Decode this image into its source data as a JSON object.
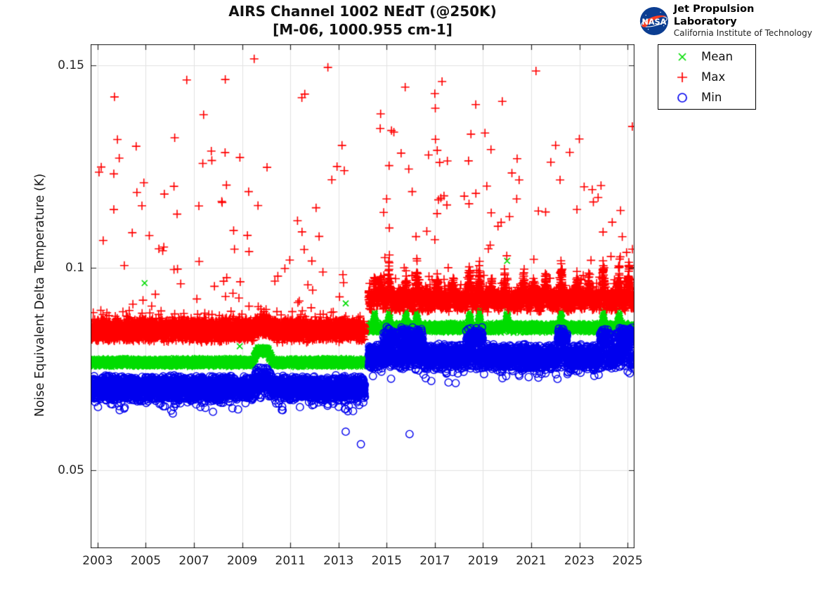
{
  "branding": {
    "nasa": "NASA",
    "org": "Jet Propulsion Laboratory",
    "sub": "California Institute of Technology"
  },
  "chart_data": {
    "type": "scatter",
    "title": "AIRS Channel 1002 NEdT (@250K)",
    "subtitle": "[M-06, 1000.955 cm-1]",
    "xlabel": "",
    "ylabel": "Noise Equivalent Delta Temperature (K)",
    "xlim": [
      2002.71,
      2025.29
    ],
    "ylim": [
      0.0307,
      0.1552
    ],
    "xticks": [
      2003,
      2005,
      2007,
      2009,
      2011,
      2013,
      2015,
      2017,
      2019,
      2021,
      2023,
      2025
    ],
    "yticks": [
      {
        "value": 0.05,
        "label": "0.05"
      },
      {
        "value": 0.1,
        "label": "0.1"
      },
      {
        "value": 0.15,
        "label": "0.15"
      }
    ],
    "grid": true,
    "legend_position": "outside-top-right",
    "legend": [
      {
        "label": "Mean",
        "marker": "x",
        "color": "#00DC00"
      },
      {
        "label": "Max",
        "marker": "+",
        "color": "#FF0000"
      },
      {
        "label": "Min",
        "marker": "o",
        "color": "#0000EE"
      }
    ],
    "event_gap": [
      2014.1,
      2014.25
    ],
    "sampling": {
      "start": 2002.74,
      "end": 2025.26,
      "per_year": 320,
      "seed": 987654321
    },
    "series": {
      "mean": {
        "name": "Mean",
        "color": "#00DC00",
        "base": {
          "pre": 0.0766,
          "post": 0.0852
        },
        "halfwidth": {
          "pre": 0.0012,
          "post": 0.0013
        },
        "pre_bump": {
          "start": 2009.45,
          "peak_start": 2009.62,
          "peak_end": 2010.05,
          "end": 2010.3,
          "amp": 0.0032
        },
        "spike_epochs": [
          2014.5,
          2015.1,
          2015.8,
          2016.25,
          2018.45,
          2018.85,
          2020.0,
          2022.25,
          2024.0,
          2024.65
        ],
        "spike_amp": 0.0042,
        "spike_halfwidth": 0.09,
        "outliers": [
          [
            2004.95,
            0.0962
          ],
          [
            2008.9,
            0.0806
          ],
          [
            2013.3,
            0.0912
          ],
          [
            2020.0,
            0.1017
          ]
        ]
      },
      "max": {
        "name": "Max",
        "color": "#FF0000",
        "base": {
          "pre": 0.0845,
          "post": 0.0918
        },
        "halfwidth": {
          "pre": 0.003,
          "post": 0.0028
        },
        "pre_bump": {
          "start": 2009.45,
          "peak_start": 2009.62,
          "peak_end": 2010.05,
          "end": 2010.3,
          "amp": 0.0012
        },
        "spike_epochs": [
          2014.5,
          2014.75,
          2015.1,
          2015.8,
          2016.25,
          2017.1,
          2017.75,
          2018.45,
          2018.85,
          2019.35,
          2019.9,
          2020.7,
          2021.1,
          2021.6,
          2022.25,
          2022.9,
          2023.4,
          2024.0,
          2024.65,
          2025.05
        ],
        "strong_epochs": [
          2015.1,
          2016.25,
          2018.45,
          2018.85,
          2022.25,
          2024.0,
          2024.65,
          2025.05
        ],
        "spike_amp": 0.006,
        "strong_amp": 0.0095,
        "spike_halfwidth": 0.1,
        "spray": {
          "prob_pre": 0.022,
          "prob_post": 0.02,
          "span_pre": [
            0.0885,
            0.132
          ],
          "span_post": [
            0.097,
            0.135
          ],
          "power": 2.2
        },
        "outliers": [
          [
            2003.06,
            0.1236
          ],
          [
            2003.7,
            0.1422
          ],
          [
            2004.6,
            0.13
          ],
          [
            2004.63,
            0.1186
          ],
          [
            2004.84,
            0.1153
          ],
          [
            2004.92,
            0.121
          ],
          [
            2005.77,
            0.1182
          ],
          [
            2006.17,
            0.1201
          ],
          [
            2006.2,
            0.1321
          ],
          [
            2006.7,
            0.1464
          ],
          [
            2007.4,
            0.1378
          ],
          [
            2007.72,
            0.1288
          ],
          [
            2008.17,
            0.1161
          ],
          [
            2008.3,
            0.1465
          ],
          [
            2009.27,
            0.1188
          ],
          [
            2009.5,
            0.1516
          ],
          [
            2011.48,
            0.142
          ],
          [
            2011.6,
            0.1429
          ],
          [
            2012.07,
            0.1148
          ],
          [
            2012.56,
            0.1495
          ],
          [
            2012.94,
            0.125
          ],
          [
            2013.24,
            0.124
          ],
          [
            2014.75,
            0.138
          ],
          [
            2015.0,
            0.117
          ],
          [
            2015.2,
            0.1339
          ],
          [
            2015.3,
            0.1335
          ],
          [
            2015.6,
            0.1283
          ],
          [
            2015.77,
            0.1446
          ],
          [
            2016.06,
            0.1188
          ],
          [
            2017.0,
            0.143
          ],
          [
            2017.02,
            0.1394
          ],
          [
            2017.1,
            0.129
          ],
          [
            2017.2,
            0.126
          ],
          [
            2017.25,
            0.1172
          ],
          [
            2017.3,
            0.146
          ],
          [
            2017.5,
            0.1155
          ],
          [
            2018.4,
            0.1264
          ],
          [
            2018.42,
            0.1158
          ],
          [
            2018.5,
            0.133
          ],
          [
            2018.7,
            0.1403
          ],
          [
            2019.8,
            0.1411
          ],
          [
            2020.2,
            0.1234
          ],
          [
            2020.4,
            0.117
          ],
          [
            2020.5,
            0.1217
          ],
          [
            2021.2,
            0.1486
          ],
          [
            2021.3,
            0.114
          ],
          [
            2022.2,
            0.1217
          ],
          [
            2022.6,
            0.1285
          ],
          [
            2022.9,
            0.1144
          ],
          [
            2023.0,
            0.1318
          ],
          [
            2023.2,
            0.12
          ],
          [
            2023.9,
            0.1203
          ],
          [
            2025.2,
            0.1349
          ]
        ]
      },
      "min": {
        "name": "Min",
        "color": "#0000EE",
        "base": {
          "pre": 0.0703,
          "post": 0.078
        },
        "halfwidth": {
          "pre": 0.0032,
          "post": 0.0033
        },
        "pre_bump": {
          "start": 2009.45,
          "peak_start": 2009.62,
          "peak_end": 2010.05,
          "end": 2010.3,
          "amp": 0.0022
        },
        "low_fringe": {
          "prob": 0.08,
          "depth": 0.0038
        },
        "bumps": [
          [
            2014.85,
            2015.4
          ],
          [
            2015.55,
            2016.0
          ],
          [
            2016.05,
            2016.5
          ],
          [
            2018.3,
            2019.0
          ],
          [
            2022.1,
            2022.5
          ],
          [
            2023.85,
            2024.25
          ],
          [
            2024.5,
            2025.2
          ]
        ],
        "bump_amp": 0.0062,
        "bump_mix": 0.65,
        "outliers": [
          [
            2013.3,
            0.0595
          ],
          [
            2013.93,
            0.0564
          ],
          [
            2015.95,
            0.0589
          ]
        ]
      }
    }
  }
}
